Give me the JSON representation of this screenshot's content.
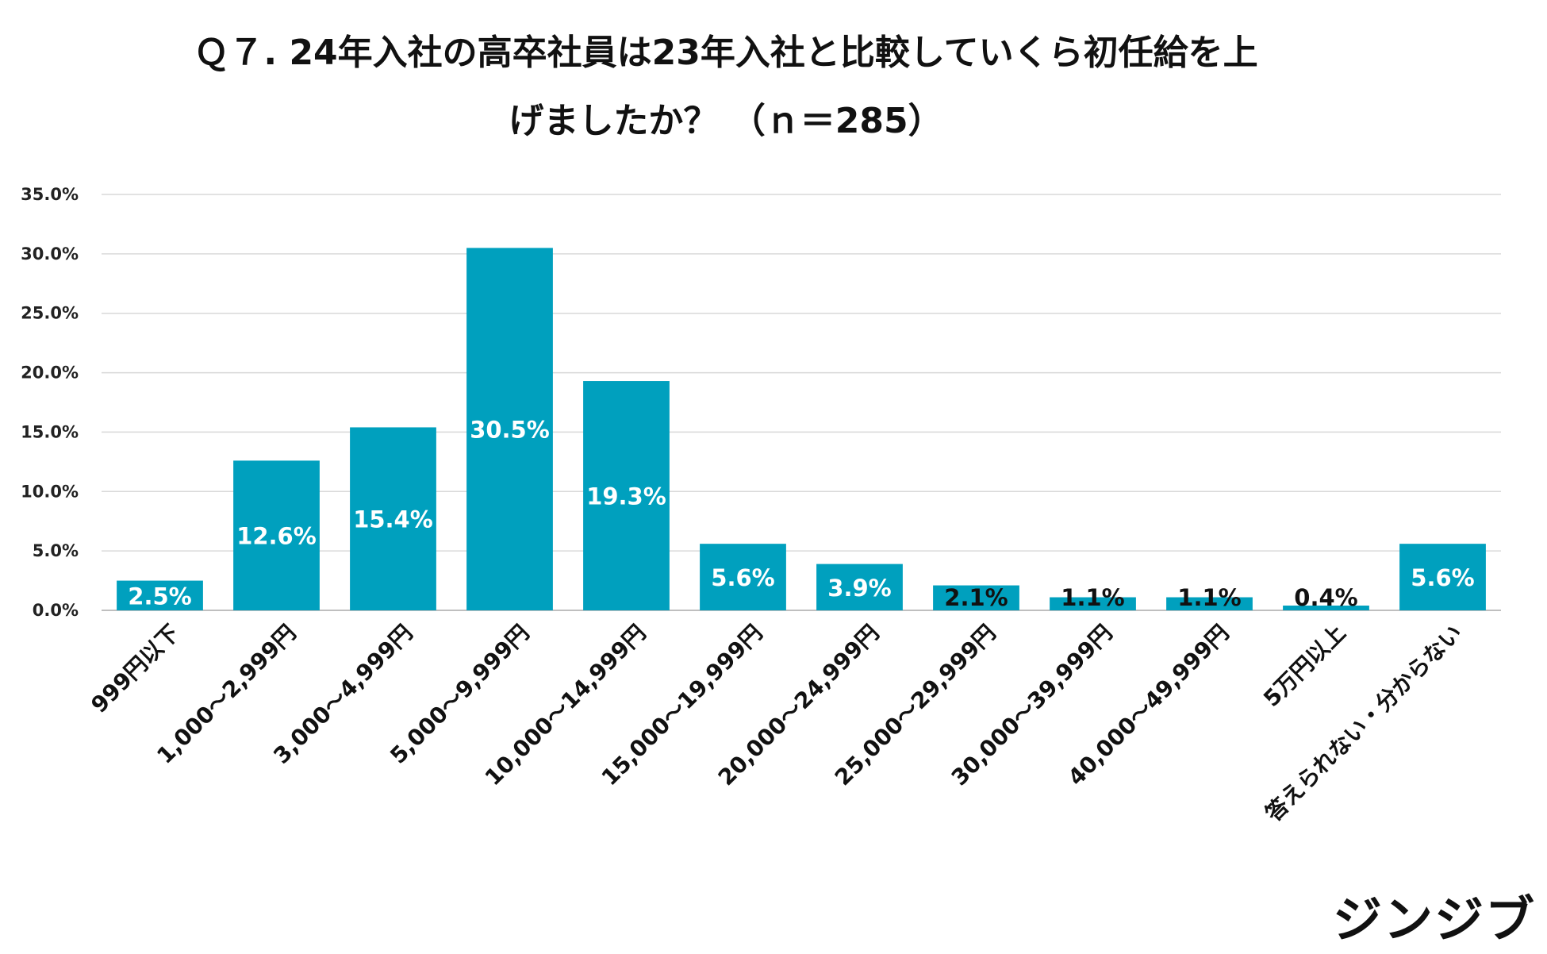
{
  "chart_data": {
    "type": "bar",
    "title_lines": [
      "Ｑ７. 24年入社の高卒社員は23年入社と比較していくら初任給を上",
      "げましたか？ （ｎ＝285）"
    ],
    "categories": [
      "999円以下",
      "1,000～2,999円",
      "3,000～4,999円",
      "5,000～9,999円",
      "10,000～14,999円",
      "15,000～19,999円",
      "20,000～24,999円",
      "25,000～29,999円",
      "30,000～39,999円",
      "40,000～49,999円",
      "5万円以上",
      "答えられない・分からない"
    ],
    "values": [
      2.5,
      12.6,
      15.4,
      30.5,
      19.3,
      5.6,
      3.9,
      2.1,
      1.1,
      1.1,
      0.4,
      5.6
    ],
    "data_labels": [
      "2.5%",
      "12.6%",
      "15.4%",
      "30.5%",
      "19.3%",
      "5.6%",
      "3.9%",
      "2.1%",
      "1.1%",
      "1.1%",
      "0.4%",
      "5.6%"
    ],
    "y_ticks": [
      "0.0%",
      "5.0%",
      "10.0%",
      "15.0%",
      "20.0%",
      "25.0%",
      "30.0%",
      "35.0%"
    ],
    "ylim": [
      0,
      35
    ],
    "xlabel": "",
    "ylabel": "",
    "grid": true,
    "bar_color": "#00A0BE",
    "label_color_inside": "#ffffff",
    "label_color_dark": "#111111",
    "gridline_color": "#d9d9d9"
  },
  "brand": {
    "name": "ジンジブ"
  }
}
